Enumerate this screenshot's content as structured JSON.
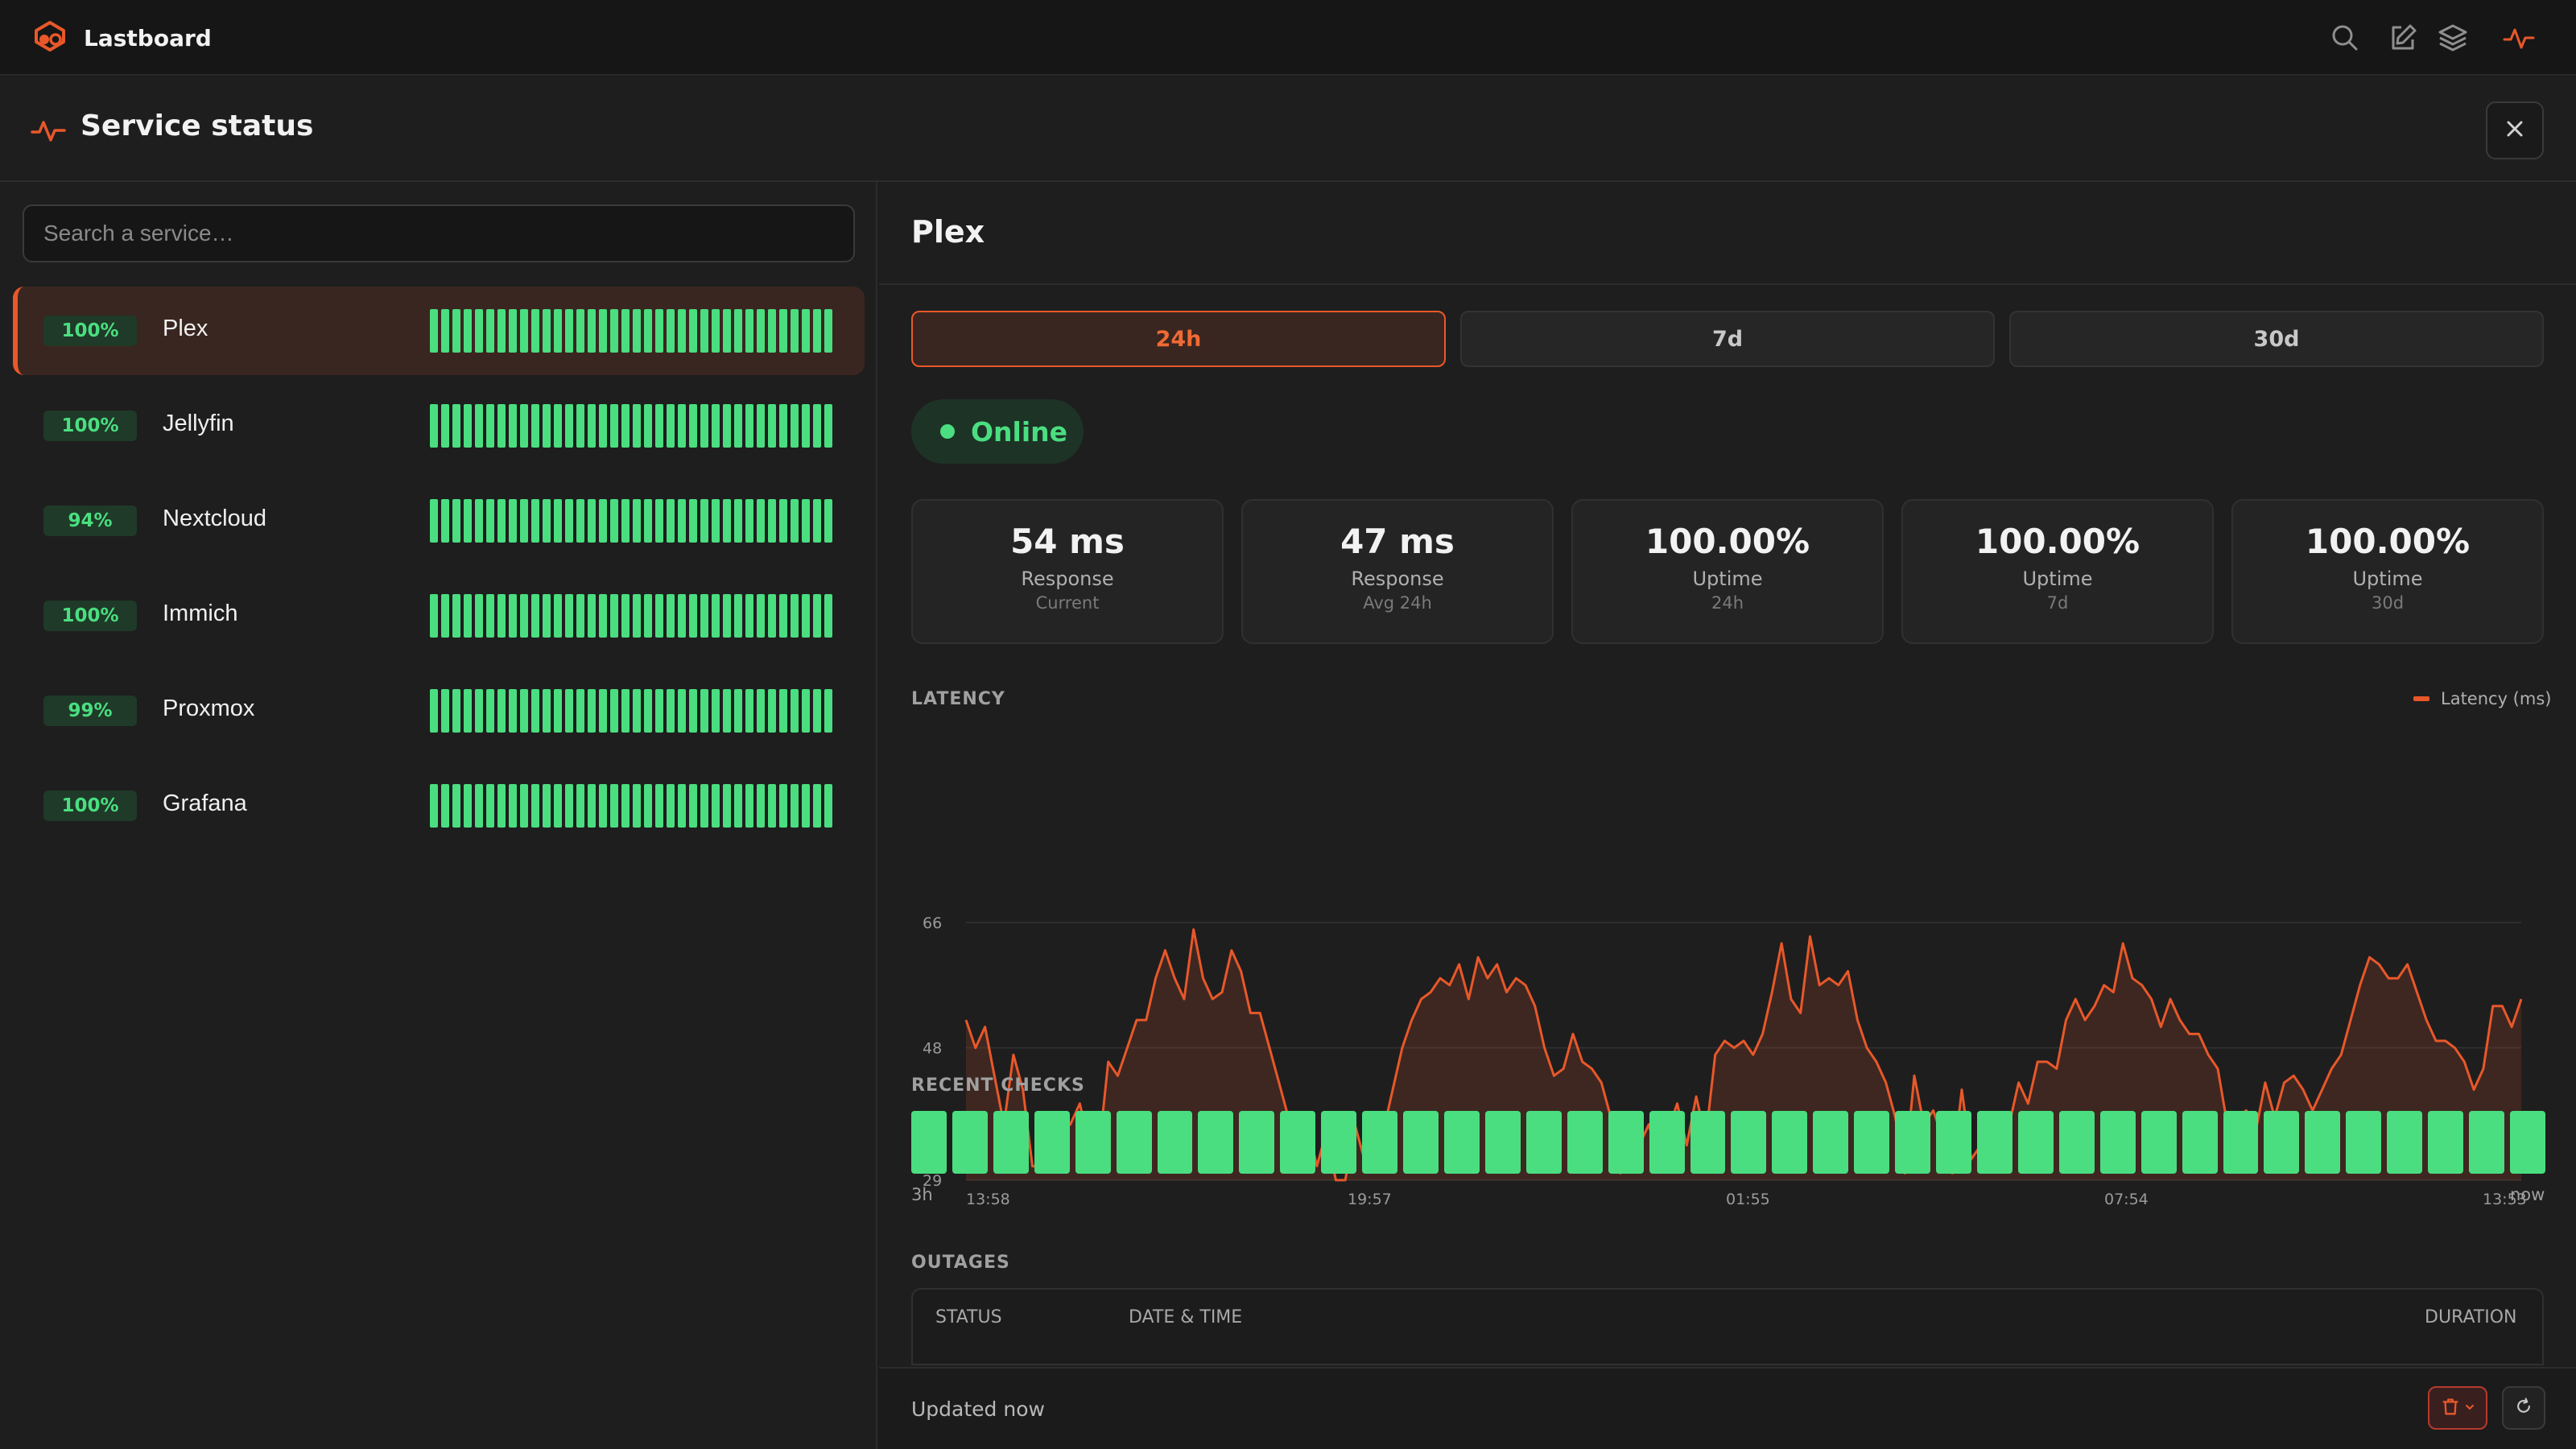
{
  "app": {
    "name": "Lastboard"
  },
  "header": {
    "title": "Service status"
  },
  "search": {
    "placeholder": "Search a service…"
  },
  "services": [
    {
      "uptime": "100%",
      "name": "Plex",
      "selected": true
    },
    {
      "uptime": "100%",
      "name": "Jellyfin",
      "selected": false
    },
    {
      "uptime": "94%",
      "name": "Nextcloud",
      "selected": false
    },
    {
      "uptime": "100%",
      "name": "Immich",
      "selected": false
    },
    {
      "uptime": "99%",
      "name": "Proxmox",
      "selected": false
    },
    {
      "uptime": "100%",
      "name": "Grafana",
      "selected": false
    }
  ],
  "detail": {
    "title": "Plex",
    "tabs": [
      {
        "label": "24h",
        "active": true
      },
      {
        "label": "7d",
        "active": false
      },
      {
        "label": "30d",
        "active": false
      }
    ],
    "status": "Online",
    "stats": [
      {
        "value": "54 ms",
        "label": "Response",
        "sub": "Current"
      },
      {
        "value": "47 ms",
        "label": "Response",
        "sub": "Avg 24h"
      },
      {
        "value": "100.00%",
        "label": "Uptime",
        "sub": "24h"
      },
      {
        "value": "100.00%",
        "label": "Uptime",
        "sub": "7d"
      },
      {
        "value": "100.00%",
        "label": "Uptime",
        "sub": "30d"
      }
    ],
    "latency_label": "LATENCY",
    "recent_checks_label": "RECENT CHECKS",
    "recent_checks_count": 40,
    "recent_checks_start": "3h",
    "recent_checks_end": "now",
    "outages_label": "OUTAGES",
    "outages_columns": [
      "STATUS",
      "DATE & TIME",
      "DURATION"
    ],
    "updated": "Updated now"
  },
  "colors": {
    "accent": "#e8582a",
    "up": "#4ade80",
    "background": "#1e1e1e"
  },
  "icons": [
    "logo-icon",
    "search-icon",
    "edit-icon",
    "layers-icon",
    "activity-icon",
    "close-icon",
    "trash-icon",
    "chevron-down-icon",
    "refresh-icon"
  ],
  "chart_data": {
    "type": "area",
    "legend": [
      "Latency (ms)"
    ],
    "ylim": [
      29,
      66
    ],
    "yticks": [
      "66",
      "48",
      "29"
    ],
    "xticks": [
      "13:58",
      "19:57",
      "01:55",
      "07:54",
      "13:53"
    ],
    "series": [
      {
        "name": "Latency (ms)",
        "values": [
          52,
          48,
          51,
          44,
          37,
          47,
          42,
          31,
          31,
          34,
          36,
          37,
          40,
          34,
          33,
          46,
          44,
          48,
          52,
          52,
          58,
          62,
          58,
          55,
          65,
          58,
          55,
          56,
          62,
          59,
          53,
          53,
          48,
          43,
          38,
          37,
          37,
          31,
          36,
          29,
          29,
          37,
          32,
          38,
          36,
          42,
          48,
          52,
          55,
          56,
          58,
          57,
          60,
          55,
          61,
          58,
          60,
          56,
          58,
          57,
          54,
          48,
          44,
          45,
          50,
          46,
          45,
          43,
          38,
          30,
          38,
          34,
          37,
          32,
          36,
          40,
          34,
          41,
          35,
          47,
          49,
          48,
          49,
          47,
          50,
          56,
          63,
          55,
          53,
          64,
          57,
          58,
          57,
          59,
          52,
          48,
          46,
          43,
          38,
          30,
          44,
          37,
          39,
          35,
          30,
          42,
          32,
          34,
          33,
          35,
          37,
          43,
          40,
          46,
          46,
          45,
          52,
          55,
          52,
          54,
          57,
          56,
          63,
          58,
          57,
          55,
          51,
          55,
          52,
          50,
          50,
          47,
          45,
          37,
          38,
          39,
          36,
          43,
          38,
          43,
          44,
          42,
          39,
          42,
          45,
          47,
          52,
          57,
          61,
          60,
          58,
          58,
          60,
          56,
          52,
          49,
          49,
          48,
          46,
          42,
          45,
          54,
          54,
          51,
          55
        ]
      }
    ]
  }
}
